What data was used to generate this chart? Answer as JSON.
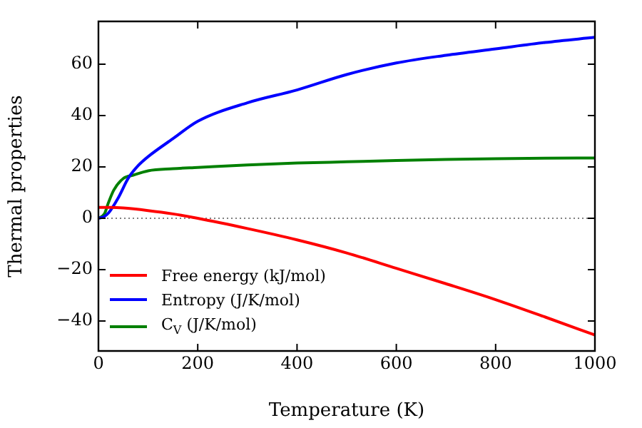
{
  "chart_data": {
    "type": "line",
    "xlabel": "Temperature (K)",
    "ylabel": "Thermal properties",
    "xlim": [
      0,
      1000
    ],
    "xticks": [
      0,
      200,
      400,
      600,
      800,
      1000
    ],
    "ylim": [
      -51.7,
      76.7
    ],
    "yticks": [
      -40,
      -20,
      0,
      20,
      40,
      60
    ],
    "grid": false,
    "legend": "bottom left",
    "marker": "none",
    "line_style": "solid",
    "ref_lines": [
      {
        "axis": "y",
        "value": 0,
        "color": "#555555",
        "line_style": "dotted"
      }
    ],
    "series": [
      {
        "name": "Free energy (kJ/mol)",
        "color": "#ff0000",
        "x": [
          0,
          25,
          50,
          100,
          150,
          200,
          300,
          400,
          500,
          600,
          700,
          800,
          900,
          1000
        ],
        "values": [
          4.2,
          4.2,
          4,
          3,
          1.7,
          0,
          -4,
          -8.4,
          -13.5,
          -19.5,
          -25.5,
          -31.7,
          -38.5,
          -45.5
        ]
      },
      {
        "name": "Entropy (J/K/mol)",
        "color": "#0000ff",
        "x": [
          0,
          10,
          20,
          40,
          60,
          80,
          100,
          150,
          200,
          300,
          400,
          500,
          600,
          700,
          800,
          900,
          1000
        ],
        "values": [
          0,
          0.5,
          2,
          8,
          15.6,
          20.5,
          24,
          31,
          37.8,
          45,
          50,
          56,
          60.5,
          63.5,
          66,
          68.5,
          70.5
        ]
      },
      {
        "name": "C$_{V}$ (J/K/mol)",
        "color": "#008000",
        "x": [
          0,
          12,
          20,
          31,
          50,
          70,
          100,
          150,
          200,
          300,
          400,
          500,
          600,
          700,
          800,
          900,
          1000
        ],
        "values": [
          0,
          1.7,
          6,
          11,
          15.5,
          16.8,
          18.5,
          19.3,
          19.8,
          20.8,
          21.5,
          22,
          22.5,
          22.9,
          23.2,
          23.4,
          23.5
        ]
      }
    ]
  }
}
